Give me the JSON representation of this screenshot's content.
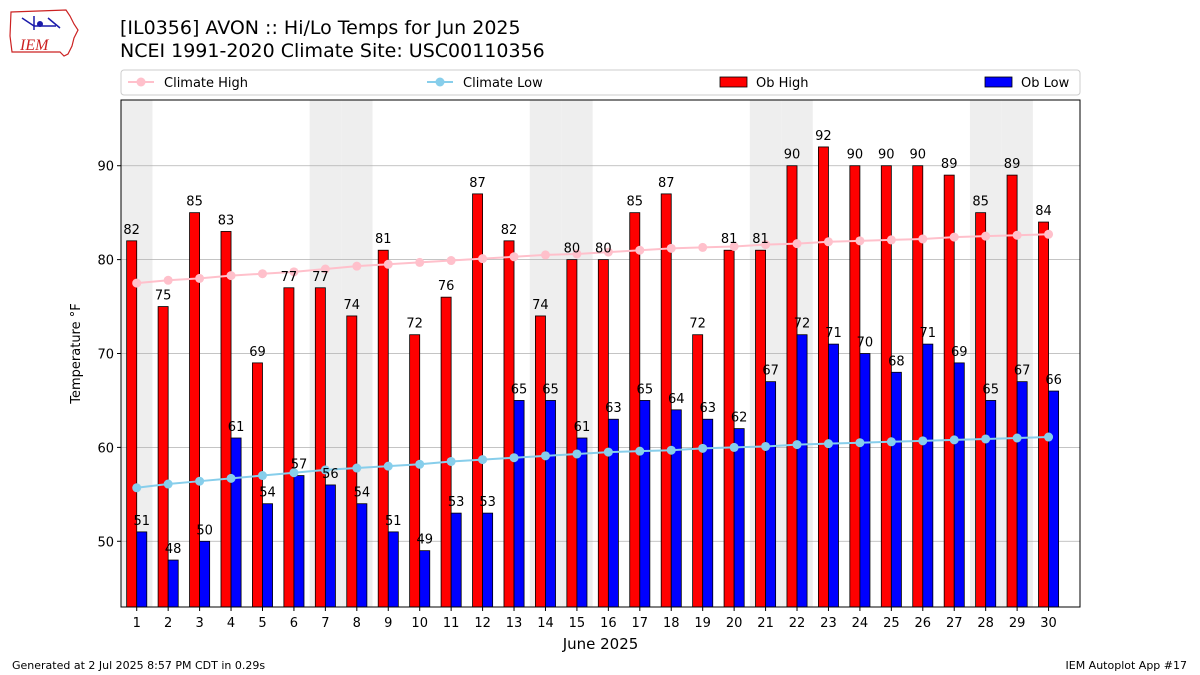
{
  "header": {
    "title_line1": "[IL0356] AVON :: Hi/Lo Temps for Jun 2025",
    "title_line2": "NCEI 1991-2020 Climate Site: USC00110356",
    "logo_text": "IEM"
  },
  "footer": {
    "generated": "Generated at 2 Jul 2025 8:57 PM CDT in 0.29s",
    "app": "IEM Autoplot App #17"
  },
  "colors": {
    "ob_high": "#ff0000",
    "ob_low": "#0000ff",
    "climate_high": "#ffc0cb",
    "climate_low": "#87ceeb",
    "weekend_band": "#eeeeee",
    "grid": "#b0b0b0"
  },
  "chart_data": {
    "type": "bar",
    "xlabel": "June 2025",
    "ylabel": "Temperature °F",
    "ylim": [
      43,
      97
    ],
    "yticks": [
      50,
      60,
      70,
      80,
      90
    ],
    "grid": "horizontal",
    "legend_placement": "top",
    "categories": [
      "1",
      "2",
      "3",
      "4",
      "5",
      "6",
      "7",
      "8",
      "9",
      "10",
      "11",
      "12",
      "13",
      "14",
      "15",
      "16",
      "17",
      "18",
      "19",
      "20",
      "21",
      "22",
      "23",
      "24",
      "25",
      "26",
      "27",
      "28",
      "29",
      "30"
    ],
    "weekend_days": [
      1,
      7,
      8,
      14,
      15,
      21,
      22,
      28,
      29
    ],
    "series": [
      {
        "name": "Ob High",
        "kind": "bar",
        "values": [
          82,
          75,
          85,
          83,
          69,
          77,
          77,
          74,
          81,
          72,
          76,
          87,
          82,
          74,
          80,
          80,
          85,
          87,
          72,
          81,
          81,
          90,
          92,
          90,
          90,
          90,
          89,
          85,
          89,
          84
        ]
      },
      {
        "name": "Ob Low",
        "kind": "bar",
        "values": [
          51,
          48,
          50,
          61,
          54,
          57,
          56,
          54,
          51,
          49,
          53,
          53,
          65,
          65,
          61,
          63,
          65,
          64,
          63,
          62,
          67,
          72,
          71,
          70,
          68,
          71,
          69,
          65,
          67,
          66
        ]
      },
      {
        "name": "Climate High",
        "kind": "line",
        "values": [
          77.5,
          77.8,
          78.0,
          78.3,
          78.5,
          78.7,
          79.0,
          79.3,
          79.5,
          79.7,
          79.9,
          80.1,
          80.3,
          80.5,
          80.6,
          80.8,
          81.0,
          81.2,
          81.3,
          81.4,
          81.6,
          81.7,
          81.9,
          82.0,
          82.1,
          82.2,
          82.4,
          82.5,
          82.6,
          82.7
        ]
      },
      {
        "name": "Climate Low",
        "kind": "line",
        "values": [
          55.7,
          56.1,
          56.4,
          56.7,
          57.0,
          57.3,
          57.6,
          57.8,
          58.0,
          58.2,
          58.5,
          58.7,
          58.9,
          59.1,
          59.3,
          59.5,
          59.6,
          59.7,
          59.9,
          60.0,
          60.1,
          60.3,
          60.4,
          60.5,
          60.6,
          60.7,
          60.8,
          60.9,
          61.0,
          61.1
        ]
      }
    ]
  }
}
